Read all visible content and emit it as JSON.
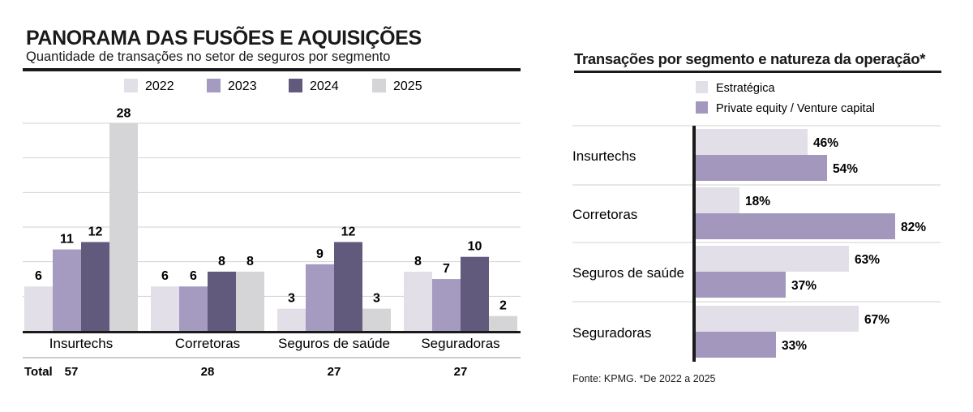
{
  "left": {
    "title": "PANORAMA DAS FUSÕES E AQUISIÇÕES",
    "subtitle": "Quantidade de transações no setor de seguros por segmento"
  },
  "right": {
    "title": "Transações por segmento e natureza da operação*"
  },
  "source": "Fonte: KPMG. *De 2022 a 2025",
  "colors": {
    "2022": "#e2dfe8",
    "2023": "#a59ac0",
    "2024": "#625a7c",
    "2025": "#d5d5d7",
    "estrategica": "#e2dfe8",
    "private_equity": "#a497bd",
    "axis": "#1a1a1a",
    "grid": "#d2d2d2"
  },
  "chart_data": [
    {
      "type": "bar",
      "title": "PANORAMA DAS FUSÕES E AQUISIÇÕES",
      "subtitle": "Quantidade de transações no setor de seguros por segmento",
      "categories": [
        "Insurtechs",
        "Corretoras",
        "Seguros de saúde",
        "Seguradoras"
      ],
      "series": [
        {
          "name": "2022",
          "values": [
            6,
            6,
            3,
            8
          ]
        },
        {
          "name": "2023",
          "values": [
            11,
            6,
            9,
            7
          ]
        },
        {
          "name": "2024",
          "values": [
            12,
            8,
            12,
            10
          ]
        },
        {
          "name": "2025",
          "values": [
            28,
            8,
            3,
            2
          ]
        }
      ],
      "totals_label": "Total",
      "totals": [
        57,
        28,
        27,
        27
      ],
      "ylim": [
        0,
        28
      ],
      "grid": true,
      "legend": "top"
    },
    {
      "type": "bar",
      "orientation": "horizontal",
      "title": "Transações por segmento e natureza da operação*",
      "categories": [
        "Insurtechs",
        "Corretoras",
        "Seguros de saúde",
        "Seguradoras"
      ],
      "series": [
        {
          "name": "Estratégica",
          "values": [
            46,
            18,
            63,
            67
          ]
        },
        {
          "name": "Private equity / Venture capital",
          "values": [
            54,
            82,
            37,
            33
          ]
        }
      ],
      "unit": "%",
      "xlim": [
        0,
        100
      ],
      "legend": "top-left"
    }
  ]
}
